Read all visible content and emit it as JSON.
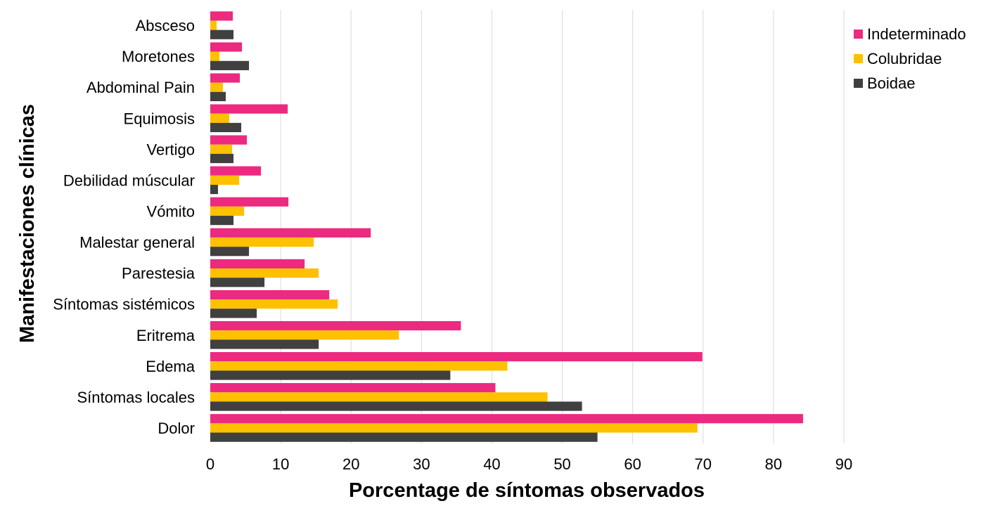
{
  "chart_data": {
    "type": "bar",
    "orientation": "horizontal",
    "title": "",
    "xlabel": "Porcentage de síntomas observados",
    "ylabel": "Manifestaciones clínicas",
    "xlim": [
      0,
      90
    ],
    "xticks": [
      0,
      10,
      20,
      30,
      40,
      50,
      60,
      70,
      80,
      90
    ],
    "grid": true,
    "legend_position": "top-right",
    "categories": [
      "Absceso",
      "Moretones",
      "Abdominal Pain",
      "Equimosis",
      "Vertigo",
      "Debilidad múscular",
      "Vómito",
      "Malestar general",
      "Parestesia",
      "Síntomas sistémicos",
      "Eritrema",
      "Edema",
      "Síntomas locales",
      "Dolor"
    ],
    "series": [
      {
        "name": "Indeterminado",
        "color": "#ec2a7f",
        "values": [
          3.2,
          4.5,
          4.2,
          11.0,
          5.2,
          7.2,
          11.1,
          22.8,
          13.4,
          16.9,
          35.6,
          69.9,
          40.5,
          84.2
        ]
      },
      {
        "name": "Colubridae",
        "color": "#ffc000",
        "values": [
          0.9,
          1.3,
          1.8,
          2.7,
          3.1,
          4.1,
          4.8,
          14.7,
          15.4,
          18.1,
          26.8,
          42.2,
          47.9,
          69.2
        ]
      },
      {
        "name": "Boidae",
        "color": "#404040",
        "values": [
          3.3,
          5.5,
          2.2,
          4.4,
          3.3,
          1.1,
          3.3,
          5.5,
          7.7,
          6.6,
          15.4,
          34.1,
          52.8,
          55.0
        ]
      }
    ]
  }
}
